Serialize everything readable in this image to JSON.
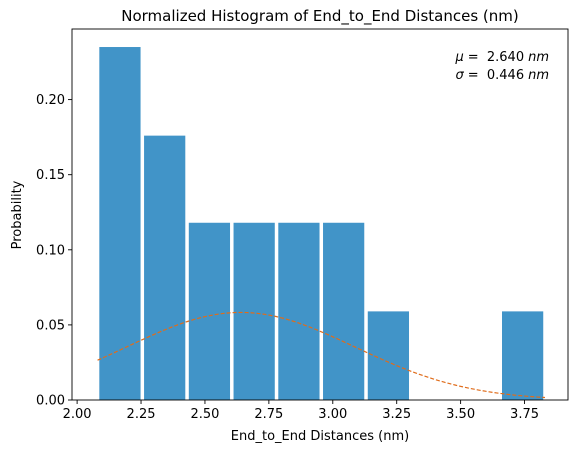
{
  "chart_data": {
    "type": "bar",
    "title": "Normalized Histogram of End_to_End Distances (nm)",
    "xlabel": "End_to_End Distances (nm)",
    "ylabel": "Probability",
    "xlim": [
      1.98,
      3.92
    ],
    "ylim": [
      0,
      0.247
    ],
    "xticks": [
      2.0,
      2.25,
      2.5,
      2.75,
      3.0,
      3.25,
      3.5,
      3.75
    ],
    "xtick_labels": [
      "2.00",
      "2.25",
      "2.50",
      "2.75",
      "3.00",
      "3.25",
      "3.50",
      "3.75"
    ],
    "yticks": [
      0.0,
      0.05,
      0.1,
      0.15,
      0.2
    ],
    "ytick_labels": [
      "0.00",
      "0.05",
      "0.10",
      "0.15",
      "0.20"
    ],
    "bins": [
      {
        "start": 2.08,
        "end": 2.255,
        "value": 0.235
      },
      {
        "start": 2.255,
        "end": 2.43,
        "value": 0.176
      },
      {
        "start": 2.43,
        "end": 2.605,
        "value": 0.118
      },
      {
        "start": 2.605,
        "end": 2.78,
        "value": 0.118
      },
      {
        "start": 2.78,
        "end": 2.955,
        "value": 0.118
      },
      {
        "start": 2.955,
        "end": 3.13,
        "value": 0.118
      },
      {
        "start": 3.13,
        "end": 3.305,
        "value": 0.059
      },
      {
        "start": 3.305,
        "end": 3.48,
        "value": 0.0
      },
      {
        "start": 3.48,
        "end": 3.655,
        "value": 0.0
      },
      {
        "start": 3.655,
        "end": 3.83,
        "value": 0.059
      }
    ],
    "bar_color": "#4194c8",
    "curve_color": "#e06c1a",
    "curve": {
      "mu": 2.64,
      "sigma": 0.446,
      "x_start": 2.08,
      "x_end": 3.83,
      "scale": 0.0583
    },
    "annotations": {
      "mu_symbol": "μ",
      "mu_text": "=  2.640",
      "sigma_symbol": "σ",
      "sigma_text": "=  0.446",
      "unit": "nm"
    },
    "grid": false,
    "legend": "none"
  }
}
